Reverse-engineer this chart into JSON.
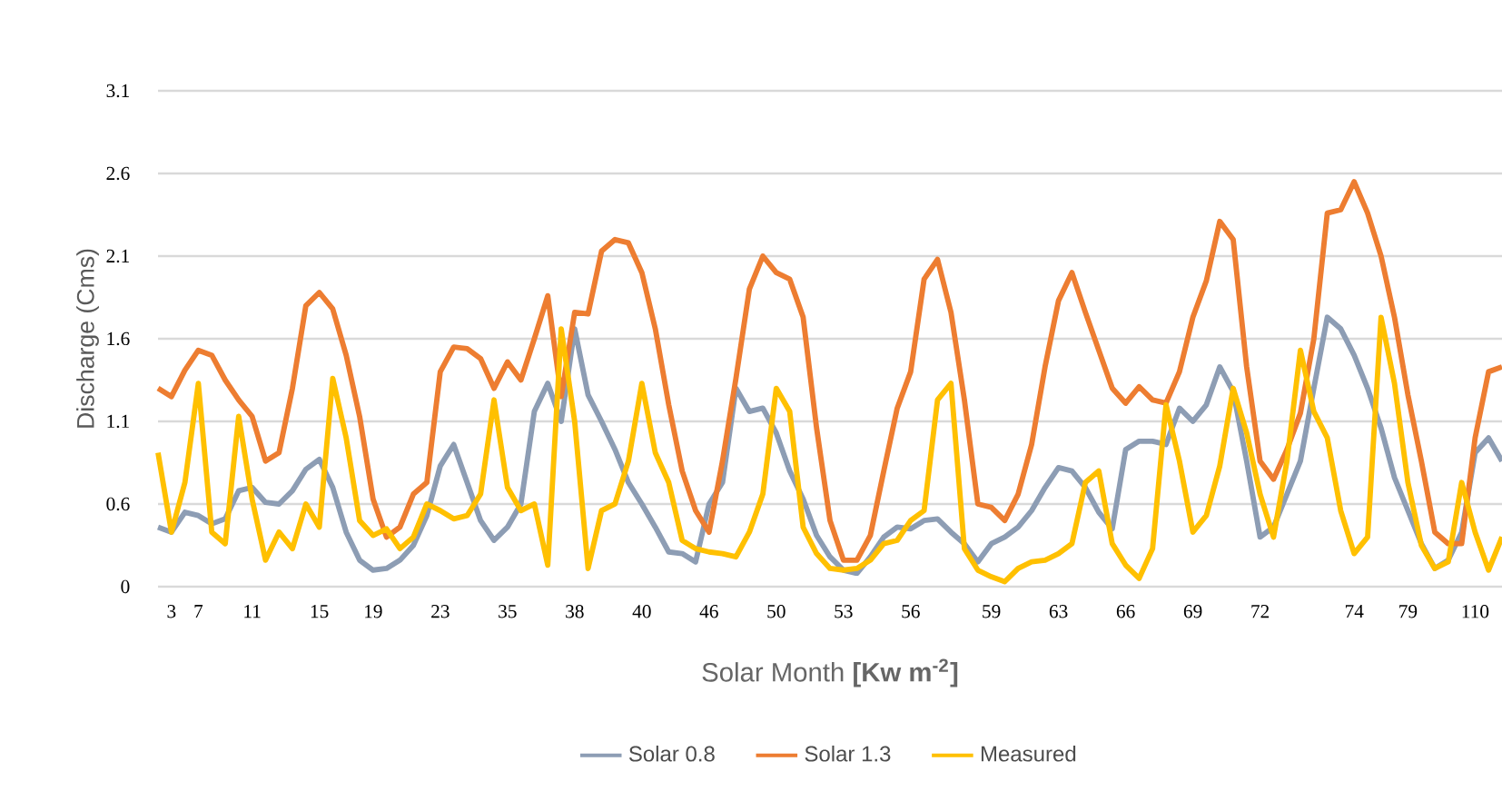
{
  "chart_data": {
    "type": "line",
    "xlabel": "Solar Month **[Kw m$^{-2}$]**",
    "ylabel": "Discharge (Cms)",
    "categories": [
      null,
      "3",
      null,
      "7",
      null,
      null,
      null,
      "11",
      null,
      null,
      null,
      null,
      "15",
      null,
      null,
      null,
      "19",
      null,
      null,
      null,
      null,
      "23",
      null,
      null,
      null,
      null,
      "35",
      null,
      null,
      null,
      null,
      "38",
      null,
      null,
      null,
      null,
      "40",
      null,
      null,
      null,
      null,
      "46",
      null,
      null,
      null,
      null,
      "50",
      null,
      null,
      null,
      null,
      "53",
      null,
      null,
      null,
      null,
      "56",
      null,
      null,
      null,
      null,
      null,
      "59",
      null,
      null,
      null,
      null,
      "63",
      null,
      null,
      null,
      null,
      "66",
      null,
      null,
      null,
      null,
      "69",
      null,
      null,
      null,
      null,
      "72",
      null,
      null,
      null,
      null,
      null,
      null,
      "74",
      null,
      null,
      null,
      "79",
      null,
      null,
      null,
      null,
      "110",
      null,
      null
    ],
    "ylim": [
      0.1,
      3.1
    ],
    "yticks": [
      {
        "value": 0.1,
        "label": "0"
      },
      0.6,
      1.1,
      1.6,
      2.1,
      2.6,
      3.1
    ],
    "grid": "y",
    "legend": "bottom",
    "series": [
      {
        "name": "Solar 0.8",
        "color": "#8d9db4",
        "values": [
          0.46,
          0.43,
          0.55,
          0.53,
          0.48,
          0.51,
          0.68,
          0.7,
          0.61,
          0.6,
          0.68,
          0.81,
          0.87,
          0.7,
          0.43,
          0.26,
          0.2,
          0.21,
          0.26,
          0.35,
          0.53,
          0.83,
          0.96,
          0.73,
          0.5,
          0.38,
          0.46,
          0.6,
          1.16,
          1.33,
          1.1,
          1.66,
          1.26,
          1.1,
          0.93,
          0.73,
          0.6,
          0.46,
          0.31,
          0.3,
          0.25,
          0.6,
          0.73,
          1.3,
          1.16,
          1.18,
          1.03,
          0.8,
          0.63,
          0.41,
          0.28,
          0.2,
          0.18,
          0.28,
          0.4,
          0.46,
          0.45,
          0.5,
          0.51,
          0.43,
          0.36,
          0.25,
          0.36,
          0.4,
          0.46,
          0.56,
          0.7,
          0.82,
          0.8,
          0.7,
          0.55,
          0.45,
          0.93,
          0.98,
          0.98,
          0.96,
          1.18,
          1.1,
          1.2,
          1.43,
          1.28,
          0.86,
          0.4,
          0.46,
          0.66,
          0.86,
          1.3,
          1.73,
          1.66,
          1.5,
          1.3,
          1.06,
          0.76,
          0.56,
          0.36,
          0.21,
          0.26,
          0.43,
          0.91,
          1.0,
          0.86
        ]
      },
      {
        "name": "Solar 1.3",
        "color": "#ed7d31",
        "values": [
          1.3,
          1.25,
          1.41,
          1.53,
          1.5,
          1.35,
          1.23,
          1.13,
          0.86,
          0.91,
          1.3,
          1.8,
          1.88,
          1.78,
          1.5,
          1.13,
          0.63,
          0.4,
          0.46,
          0.66,
          0.73,
          1.4,
          1.55,
          1.54,
          1.48,
          1.3,
          1.46,
          1.35,
          1.6,
          1.86,
          1.25,
          1.76,
          1.75,
          2.13,
          2.2,
          2.18,
          2.0,
          1.66,
          1.2,
          0.8,
          0.56,
          0.43,
          0.86,
          1.36,
          1.9,
          2.1,
          2.0,
          1.96,
          1.73,
          1.06,
          0.5,
          0.26,
          0.26,
          0.41,
          0.8,
          1.18,
          1.4,
          1.96,
          2.08,
          1.76,
          1.23,
          0.6,
          0.58,
          0.5,
          0.66,
          0.96,
          1.43,
          1.83,
          2.0,
          1.76,
          1.53,
          1.3,
          1.21,
          1.31,
          1.23,
          1.21,
          1.4,
          1.73,
          1.95,
          2.31,
          2.2,
          1.43,
          0.86,
          0.75,
          0.93,
          1.15,
          1.6,
          2.36,
          2.38,
          2.55,
          2.36,
          2.1,
          1.73,
          1.26,
          0.86,
          0.43,
          0.36,
          0.36,
          1.0,
          1.4,
          1.43
        ]
      },
      {
        "name": "Measured",
        "color": "#ffc000",
        "values": [
          0.91,
          0.43,
          0.73,
          1.33,
          0.43,
          0.36,
          1.13,
          0.63,
          0.26,
          0.43,
          0.33,
          0.6,
          0.46,
          1.36,
          1.0,
          0.5,
          0.41,
          0.45,
          0.33,
          0.4,
          0.6,
          0.56,
          0.51,
          0.53,
          0.66,
          1.23,
          0.7,
          0.56,
          0.6,
          0.23,
          1.66,
          1.1,
          0.21,
          0.56,
          0.6,
          0.86,
          1.33,
          0.91,
          0.73,
          0.38,
          0.33,
          0.31,
          0.3,
          0.28,
          0.43,
          0.66,
          1.3,
          1.16,
          0.46,
          0.3,
          0.21,
          0.2,
          0.21,
          0.26,
          0.36,
          0.38,
          0.5,
          0.56,
          1.23,
          1.33,
          0.33,
          0.2,
          0.16,
          0.13,
          0.21,
          0.25,
          0.26,
          0.3,
          0.36,
          0.73,
          0.8,
          0.36,
          0.23,
          0.15,
          0.33,
          1.2,
          0.86,
          0.43,
          0.53,
          0.83,
          1.3,
          1.03,
          0.66,
          0.4,
          0.86,
          1.53,
          1.16,
          1.0,
          0.56,
          0.3,
          0.4,
          1.73,
          1.33,
          0.73,
          0.35,
          0.21,
          0.25,
          0.73,
          0.43,
          0.2,
          0.4
        ]
      }
    ]
  }
}
